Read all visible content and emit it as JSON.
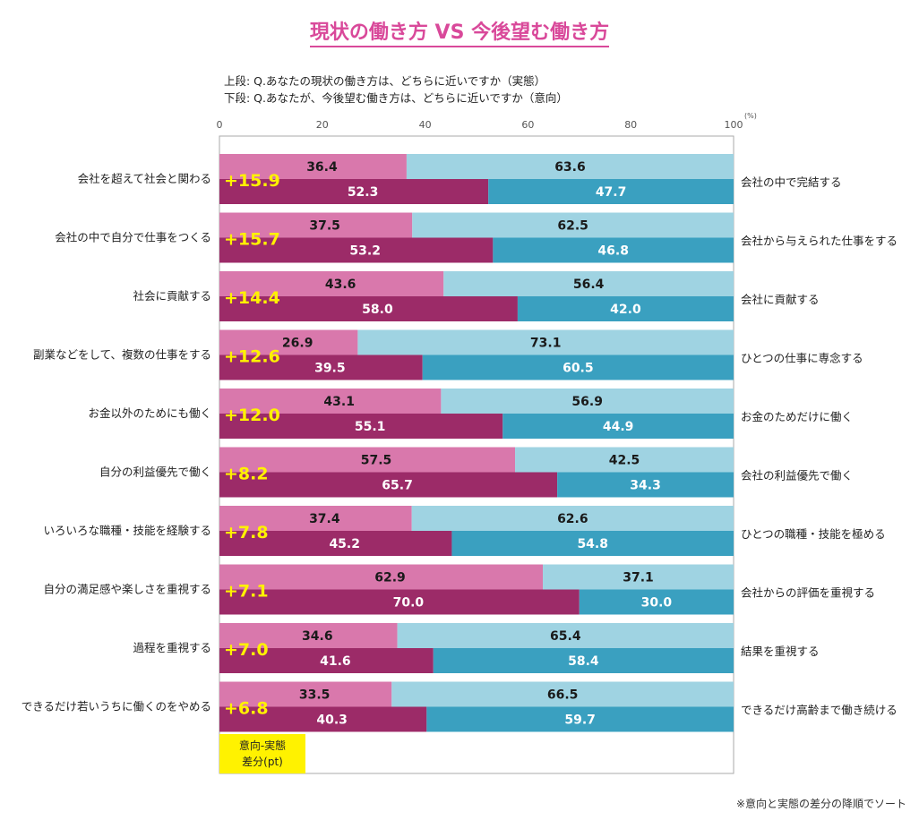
{
  "title": "現状の働き方 VS 今後望む働き方",
  "questions": {
    "upper": "上段: Q.あなたの現状の働き方は、どちらに近いですか（実態）",
    "lower": "下段: Q.あなたが、今後望む働き方は、どちらに近いですか（意向）"
  },
  "note_label": [
    "意向-実態",
    "差分(pt)"
  ],
  "footnote": "※意向と実態の差分の降順でソート",
  "colors": {
    "actual_left": "#d978ac",
    "actual_right": "#9fd3e2",
    "desired_left": "#9c2b68",
    "desired_right": "#3aa0c0",
    "diff_text": "#fff200",
    "frame": "#aaaaaa"
  },
  "chart_data": {
    "type": "bar",
    "orientation": "horizontal-stacked-100",
    "axis": {
      "ticks": [
        0,
        20,
        40,
        60,
        80,
        100
      ],
      "unit": "(%)",
      "range": [
        0,
        100
      ]
    },
    "series": [
      {
        "name": "上段 実態",
        "role": "actual"
      },
      {
        "name": "下段 意向",
        "role": "desired"
      }
    ],
    "rows": [
      {
        "left_label": "会社を超えて社会と関わる",
        "right_label": "会社の中で完結する",
        "diff": "+15.9",
        "actual": [
          36.4,
          63.6
        ],
        "desired": [
          52.3,
          47.7
        ]
      },
      {
        "left_label": "会社の中で自分で仕事をつくる",
        "right_label": "会社から与えられた仕事をする",
        "diff": "+15.7",
        "actual": [
          37.5,
          62.5
        ],
        "desired": [
          53.2,
          46.8
        ]
      },
      {
        "left_label": "社会に貢献する",
        "right_label": "会社に貢献する",
        "diff": "+14.4",
        "actual": [
          43.6,
          56.4
        ],
        "desired": [
          58.0,
          42.0
        ]
      },
      {
        "left_label": "副業などをして、複数の仕事をする",
        "right_label": "ひとつの仕事に専念する",
        "diff": "+12.6",
        "actual": [
          26.9,
          73.1
        ],
        "desired": [
          39.5,
          60.5
        ]
      },
      {
        "left_label": "お金以外のためにも働く",
        "right_label": "お金のためだけに働く",
        "diff": "+12.0",
        "actual": [
          43.1,
          56.9
        ],
        "desired": [
          55.1,
          44.9
        ]
      },
      {
        "left_label": "自分の利益優先で働く",
        "right_label": "会社の利益優先で働く",
        "diff": "+8.2",
        "actual": [
          57.5,
          42.5
        ],
        "desired": [
          65.7,
          34.3
        ]
      },
      {
        "left_label": "いろいろな職種・技能を経験する",
        "right_label": "ひとつの職種・技能を極める",
        "diff": "+7.8",
        "actual": [
          37.4,
          62.6
        ],
        "desired": [
          45.2,
          54.8
        ]
      },
      {
        "left_label": "自分の満足感や楽しさを重視する",
        "right_label": "会社からの評価を重視する",
        "diff": "+7.1",
        "actual": [
          62.9,
          37.1
        ],
        "desired": [
          70.0,
          30.0
        ]
      },
      {
        "left_label": "過程を重視する",
        "right_label": "結果を重視する",
        "diff": "+7.0",
        "actual": [
          34.6,
          65.4
        ],
        "desired": [
          41.6,
          58.4
        ]
      },
      {
        "left_label": "できるだけ若いうちに働くのをやめる",
        "right_label": "できるだけ高齢まで働き続ける",
        "diff": "+6.8",
        "actual": [
          33.5,
          66.5
        ],
        "desired": [
          40.3,
          59.7
        ]
      }
    ]
  }
}
